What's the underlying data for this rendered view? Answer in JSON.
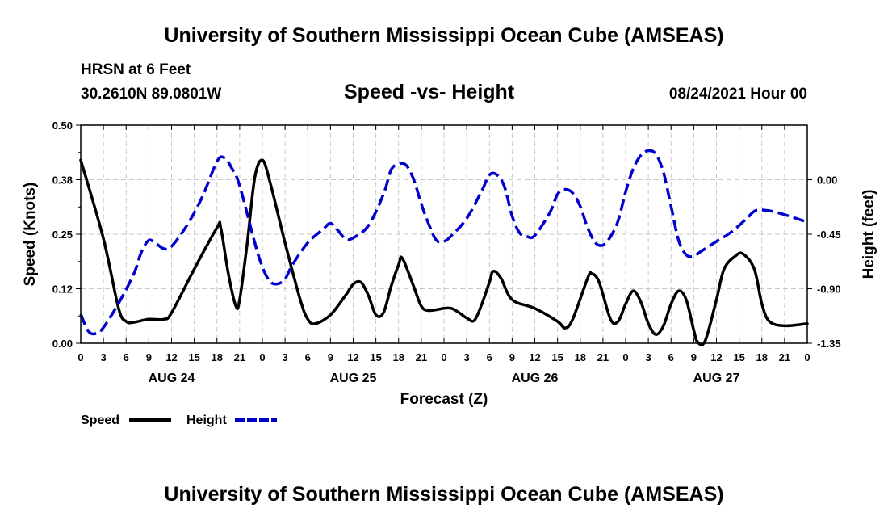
{
  "header": {
    "top_title": "University of Southern Mississippi Ocean Cube (AMSEAS)",
    "station": "HRSN at 6 Feet",
    "coords": "30.2610N  89.0801W",
    "subtitle": "Speed -vs- Height",
    "datetime": "08/24/2021 Hour 00",
    "bottom_title": "University of Southern Mississippi Ocean Cube (AMSEAS)"
  },
  "chart_data": {
    "type": "line",
    "title": "Speed -vs- Height",
    "xlabel": "Forecast (Z)",
    "ylabel": "Speed (Knots)",
    "y2label": "Height (feet)",
    "xlim": [
      0,
      96
    ],
    "ylim": [
      0,
      0.5
    ],
    "y2lim": [
      -1.35,
      0.45
    ],
    "x_ticks": [
      0,
      3,
      6,
      9,
      12,
      15,
      18,
      21,
      24,
      27,
      30,
      33,
      36,
      39,
      42,
      45,
      48,
      51,
      54,
      57,
      60,
      63,
      66,
      69,
      72,
      75,
      78,
      81,
      84,
      87,
      90,
      93,
      96
    ],
    "x_tick_labels": [
      "0",
      "3",
      "6",
      "9",
      "12",
      "15",
      "18",
      "21",
      "0",
      "3",
      "6",
      "9",
      "12",
      "15",
      "18",
      "21",
      "0",
      "3",
      "6",
      "9",
      "12",
      "15",
      "18",
      "21",
      "0",
      "3",
      "6",
      "9",
      "12",
      "15",
      "18",
      "21",
      "0"
    ],
    "y_ticks": [
      0.0,
      0.125,
      0.25,
      0.375,
      0.5
    ],
    "y_tick_labels": [
      "0.00",
      "0.12",
      "0.25",
      "0.38",
      "0.50"
    ],
    "y2_ticks": [
      0.0,
      -0.45,
      -0.9,
      -1.35
    ],
    "y2_tick_labels": [
      "0.00",
      "-0.45",
      "-0.90",
      "-1.35"
    ],
    "day_labels": [
      {
        "x": 12,
        "label": "AUG 24"
      },
      {
        "x": 36,
        "label": "AUG 25"
      },
      {
        "x": 60,
        "label": "AUG 26"
      },
      {
        "x": 84,
        "label": "AUG 27"
      }
    ],
    "grid": true,
    "legend_position": "bottom-left",
    "series": [
      {
        "name": "Speed",
        "axis": "left",
        "color": "#000000",
        "dash": "solid",
        "points": [
          [
            0,
            0.42
          ],
          [
            3,
            0.24
          ],
          [
            5,
            0.08
          ],
          [
            6,
            0.05
          ],
          [
            7,
            0.048
          ],
          [
            9,
            0.055
          ],
          [
            11,
            0.055
          ],
          [
            12,
            0.07
          ],
          [
            15,
            0.17
          ],
          [
            18,
            0.265
          ],
          [
            18.5,
            0.265
          ],
          [
            19.5,
            0.16
          ],
          [
            20.5,
            0.085
          ],
          [
            21,
            0.1
          ],
          [
            22,
            0.23
          ],
          [
            23,
            0.38
          ],
          [
            24,
            0.42
          ],
          [
            25,
            0.37
          ],
          [
            27,
            0.23
          ],
          [
            29,
            0.1
          ],
          [
            30,
            0.055
          ],
          [
            31,
            0.045
          ],
          [
            33,
            0.065
          ],
          [
            35,
            0.11
          ],
          [
            36,
            0.135
          ],
          [
            37,
            0.14
          ],
          [
            38,
            0.11
          ],
          [
            39,
            0.065
          ],
          [
            40,
            0.07
          ],
          [
            41,
            0.13
          ],
          [
            42,
            0.18
          ],
          [
            42.5,
            0.195
          ],
          [
            44,
            0.13
          ],
          [
            45,
            0.085
          ],
          [
            46,
            0.075
          ],
          [
            48,
            0.08
          ],
          [
            49,
            0.08
          ],
          [
            50,
            0.07
          ],
          [
            51,
            0.058
          ],
          [
            52,
            0.052
          ],
          [
            53,
            0.09
          ],
          [
            54,
            0.14
          ],
          [
            54.5,
            0.165
          ],
          [
            55.5,
            0.15
          ],
          [
            57,
            0.1
          ],
          [
            60,
            0.08
          ],
          [
            63,
            0.05
          ],
          [
            64,
            0.035
          ],
          [
            65,
            0.055
          ],
          [
            67,
            0.15
          ],
          [
            67.5,
            0.16
          ],
          [
            68.5,
            0.14
          ],
          [
            70,
            0.055
          ],
          [
            71,
            0.05
          ],
          [
            72,
            0.09
          ],
          [
            73,
            0.12
          ],
          [
            74,
            0.095
          ],
          [
            75,
            0.045
          ],
          [
            76,
            0.02
          ],
          [
            77,
            0.04
          ],
          [
            78,
            0.09
          ],
          [
            79,
            0.12
          ],
          [
            80,
            0.1
          ],
          [
            81,
            0.03
          ],
          [
            81.5,
            0.003
          ],
          [
            82.5,
            0.005
          ],
          [
            84,
            0.1
          ],
          [
            85,
            0.17
          ],
          [
            86.5,
            0.2
          ],
          [
            87.5,
            0.205
          ],
          [
            89,
            0.17
          ],
          [
            90,
            0.09
          ],
          [
            91,
            0.05
          ],
          [
            93,
            0.04
          ],
          [
            96,
            0.045
          ]
        ]
      },
      {
        "name": "Height",
        "axis": "right",
        "color": "#0000cc",
        "dash": "dashed",
        "points": [
          [
            0,
            -1.11
          ],
          [
            1,
            -1.25
          ],
          [
            2,
            -1.27
          ],
          [
            3,
            -1.22
          ],
          [
            5,
            -1.02
          ],
          [
            7,
            -0.78
          ],
          [
            8,
            -0.6
          ],
          [
            9,
            -0.5
          ],
          [
            10,
            -0.53
          ],
          [
            11,
            -0.57
          ],
          [
            12,
            -0.55
          ],
          [
            14,
            -0.38
          ],
          [
            16,
            -0.15
          ],
          [
            18,
            0.15
          ],
          [
            19,
            0.18
          ],
          [
            20,
            0.09
          ],
          [
            21,
            -0.05
          ],
          [
            23,
            -0.52
          ],
          [
            24,
            -0.72
          ],
          [
            25,
            -0.84
          ],
          [
            26,
            -0.86
          ],
          [
            27,
            -0.82
          ],
          [
            28,
            -0.7
          ],
          [
            30,
            -0.52
          ],
          [
            32,
            -0.41
          ],
          [
            33,
            -0.36
          ],
          [
            34,
            -0.42
          ],
          [
            35,
            -0.49
          ],
          [
            36,
            -0.48
          ],
          [
            38,
            -0.38
          ],
          [
            40,
            -0.12
          ],
          [
            41,
            0.08
          ],
          [
            42,
            0.13
          ],
          [
            43,
            0.12
          ],
          [
            44,
            0.0
          ],
          [
            45,
            -0.2
          ],
          [
            46,
            -0.37
          ],
          [
            47,
            -0.5
          ],
          [
            48,
            -0.51
          ],
          [
            49,
            -0.46
          ],
          [
            51,
            -0.32
          ],
          [
            53,
            -0.09
          ],
          [
            54,
            0.04
          ],
          [
            55,
            0.04
          ],
          [
            56,
            -0.06
          ],
          [
            57,
            -0.3
          ],
          [
            58,
            -0.44
          ],
          [
            59,
            -0.47
          ],
          [
            60,
            -0.46
          ],
          [
            62,
            -0.27
          ],
          [
            63,
            -0.12
          ],
          [
            64,
            -0.08
          ],
          [
            65,
            -0.11
          ],
          [
            66,
            -0.22
          ],
          [
            67,
            -0.4
          ],
          [
            68,
            -0.52
          ],
          [
            69,
            -0.54
          ],
          [
            70,
            -0.47
          ],
          [
            71,
            -0.34
          ],
          [
            72,
            -0.1
          ],
          [
            73,
            0.09
          ],
          [
            74,
            0.2
          ],
          [
            75,
            0.24
          ],
          [
            76,
            0.21
          ],
          [
            77,
            0.06
          ],
          [
            78,
            -0.22
          ],
          [
            79,
            -0.5
          ],
          [
            80,
            -0.62
          ],
          [
            81,
            -0.63
          ],
          [
            82,
            -0.59
          ],
          [
            84,
            -0.51
          ],
          [
            86,
            -0.43
          ],
          [
            88,
            -0.32
          ],
          [
            89,
            -0.26
          ],
          [
            90,
            -0.25
          ],
          [
            92,
            -0.27
          ],
          [
            96,
            -0.35
          ]
        ]
      }
    ]
  },
  "legend": {
    "items": [
      {
        "label": "Speed",
        "color": "#000000"
      },
      {
        "label": "Height",
        "color": "#0000cc"
      }
    ]
  }
}
